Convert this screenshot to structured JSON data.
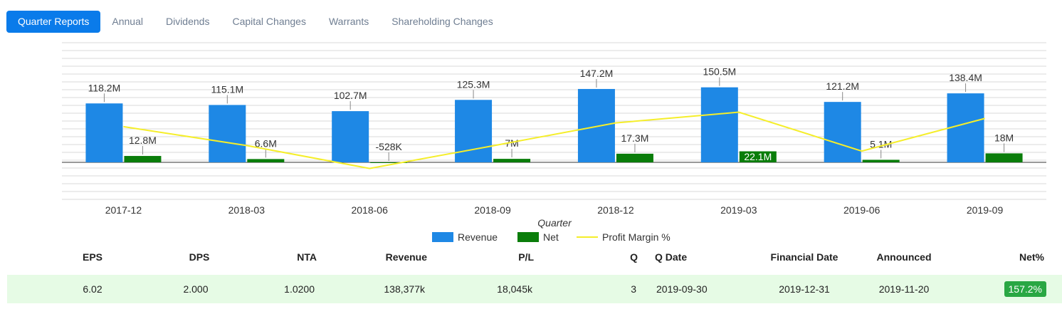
{
  "tabs": [
    "Quarter Reports",
    "Annual",
    "Dividends",
    "Capital Changes",
    "Warrants",
    "Shareholding Changes"
  ],
  "colors": {
    "revenue": "#1e88e5",
    "net": "#0a7d0a",
    "margin": "#f5ee2a",
    "active_tab": "#0a7bea",
    "row_bg": "#e6fbe5",
    "badge": "#29a743"
  },
  "chart_data": {
    "type": "bar",
    "xlabel": "Quarter",
    "categories": [
      "2017-12",
      "2018-03",
      "2018-06",
      "2018-09",
      "2018-12",
      "2019-03",
      "2019-06",
      "2019-09"
    ],
    "series": [
      {
        "name": "Revenue",
        "values": [
          118.2,
          115.1,
          102.7,
          125.3,
          147.2,
          150.5,
          121.2,
          138.4
        ],
        "labels": [
          "118.2M",
          "115.1M",
          "102.7M",
          "125.3M",
          "147.2M",
          "150.5M",
          "121.2M",
          "138.4M"
        ]
      },
      {
        "name": "Net",
        "values": [
          12.8,
          6.6,
          -0.528,
          7,
          17.3,
          22.1,
          5.1,
          18
        ],
        "labels": [
          "12.8M",
          "6.6M",
          "-528K",
          "7M",
          "17.3M",
          "22.1M",
          "5.1M",
          "18M"
        ]
      },
      {
        "name": "Profit Margin %",
        "type": "line",
        "values": [
          10.8,
          5.7,
          -0.5,
          5.6,
          11.8,
          14.7,
          4.2,
          13.0
        ]
      }
    ],
    "ylim": [
      -40,
      200
    ],
    "grid": true,
    "legend": "bottom"
  },
  "table": {
    "headers": [
      "EPS",
      "DPS",
      "NTA",
      "Revenue",
      "P/L",
      "Q",
      "Q Date",
      "Financial Date",
      "Announced",
      "Net%"
    ],
    "row": [
      "6.02",
      "2.000",
      "1.0200",
      "138,377k",
      "18,045k",
      "3",
      "2019-09-30",
      "2019-12-31",
      "2019-11-20",
      "157.2%"
    ]
  }
}
